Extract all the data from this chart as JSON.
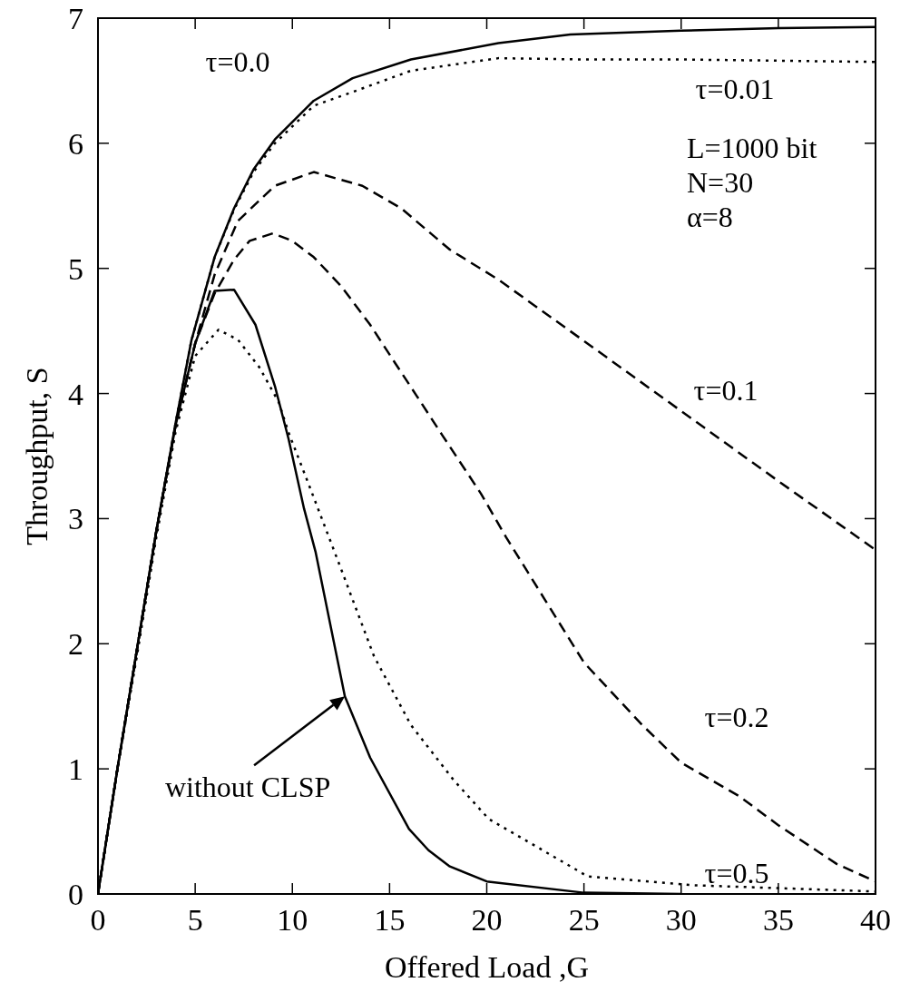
{
  "chart_data": {
    "type": "line",
    "xlabel": "Offered Load ,G",
    "ylabel": "Throughput, S",
    "xlim": [
      0,
      40
    ],
    "ylim": [
      0,
      7
    ],
    "xticks": [
      0,
      5,
      10,
      15,
      20,
      25,
      30,
      35,
      40
    ],
    "yticks": [
      0,
      1,
      2,
      3,
      4,
      5,
      6,
      7
    ],
    "grid": false,
    "legend": false,
    "marker": "none",
    "series": [
      {
        "color": "#000000",
        "line_style": "solid",
        "x": [
          0,
          1,
          2,
          3,
          4,
          4.8,
          6,
          7,
          8,
          9.1,
          11.1,
          13.1,
          16.1,
          20.6,
          24.3,
          30,
          35,
          40
        ],
        "values": [
          0,
          1.0,
          1.95,
          2.9,
          3.77,
          4.42,
          5.09,
          5.48,
          5.79,
          6.03,
          6.34,
          6.52,
          6.67,
          6.8,
          6.87,
          6.9,
          6.92,
          6.93
        ]
      },
      {
        "color": "#000000",
        "line_style": "dotted",
        "x": [
          0,
          1,
          2,
          3,
          4,
          4.8,
          6,
          7,
          8,
          9.1,
          11.1,
          13.1,
          16.1,
          20.6,
          25,
          30,
          35,
          40
        ],
        "values": [
          0,
          1.0,
          1.95,
          2.9,
          3.77,
          4.42,
          5.09,
          5.47,
          5.77,
          6.0,
          6.3,
          6.41,
          6.58,
          6.68,
          6.67,
          6.67,
          6.66,
          6.65
        ]
      },
      {
        "color": "#000000",
        "line_style": "dashed",
        "x": [
          0,
          1,
          2,
          3,
          4,
          5,
          6,
          7.2,
          9.1,
          11.1,
          13.6,
          15.6,
          18.1,
          20.6,
          25,
          30,
          35,
          40
        ],
        "values": [
          0,
          1.0,
          1.95,
          2.9,
          3.75,
          4.4,
          4.95,
          5.38,
          5.66,
          5.77,
          5.66,
          5.48,
          5.15,
          4.91,
          4.42,
          3.86,
          3.3,
          2.75
        ]
      },
      {
        "color": "#000000",
        "line_style": "dashed",
        "x": [
          0,
          1,
          2,
          3,
          4,
          5,
          6,
          7,
          7.8,
          9,
          10,
          11.1,
          12.5,
          14,
          15.3,
          16.4,
          17.7,
          19.7,
          21,
          23,
          25,
          28,
          30,
          33,
          35,
          38,
          40
        ],
        "values": [
          0,
          1.0,
          1.95,
          2.9,
          3.75,
          4.4,
          4.8,
          5.07,
          5.22,
          5.28,
          5.22,
          5.09,
          4.86,
          4.55,
          4.24,
          3.98,
          3.67,
          3.2,
          2.85,
          2.35,
          1.85,
          1.35,
          1.05,
          0.78,
          0.55,
          0.24,
          0.1
        ]
      },
      {
        "color": "#000000",
        "line_style": "solid",
        "x": [
          0,
          1,
          2,
          3,
          4,
          5,
          6,
          7,
          8.1,
          9.1,
          9.8,
          10.6,
          11.2,
          12.7,
          14,
          16,
          17,
          18.1,
          20,
          25,
          30
        ],
        "values": [
          0,
          1.0,
          1.95,
          2.9,
          3.75,
          4.4,
          4.82,
          4.83,
          4.55,
          4.06,
          3.64,
          3.08,
          2.73,
          1.58,
          1.09,
          0.52,
          0.35,
          0.22,
          0.1,
          0.01,
          0
        ]
      },
      {
        "color": "#000000",
        "line_style": "dotted",
        "x": [
          0,
          1,
          2,
          3,
          4,
          5,
          6.2,
          7.2,
          8.3,
          9.3,
          9.8,
          10.9,
          12.5,
          14.2,
          16.1,
          18.3,
          20.1,
          25.2,
          30.6,
          40
        ],
        "values": [
          0,
          1.0,
          1.9,
          2.85,
          3.7,
          4.3,
          4.51,
          4.43,
          4.21,
          3.93,
          3.69,
          3.25,
          2.6,
          1.9,
          1.35,
          0.91,
          0.6,
          0.14,
          0.07,
          0.02
        ]
      }
    ],
    "annotations": [
      "τ=0.0",
      "τ=0.01",
      "τ=0.1",
      "τ=0.2",
      "τ=0.5",
      {
        "text": "without CLSP",
        "x": 12.7,
        "y": 1.58
      },
      "L=1000 bit",
      "N=30",
      "α=8"
    ]
  }
}
